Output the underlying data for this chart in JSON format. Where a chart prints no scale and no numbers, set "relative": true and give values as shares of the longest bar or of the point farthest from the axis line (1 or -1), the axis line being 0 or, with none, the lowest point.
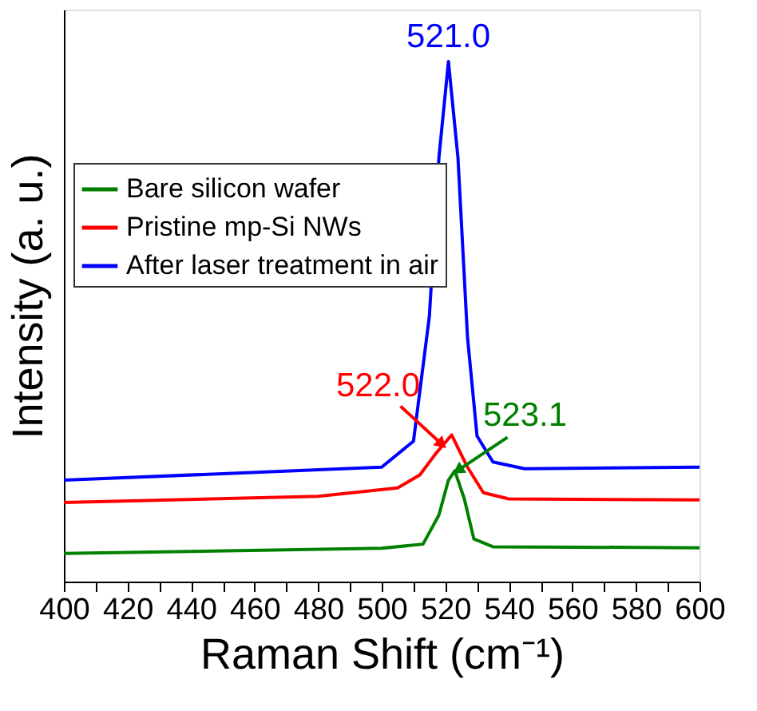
{
  "chart_data": {
    "type": "line",
    "relative": true,
    "xlabel": "Raman Shift (cm⁻¹)",
    "ylabel": "Intensity (a. u.)",
    "xlim": [
      400,
      600
    ],
    "xticks": [
      400,
      {
        "value": 410,
        "label": null
      },
      420,
      {
        "value": 430,
        "label": null
      },
      440,
      {
        "value": 450,
        "label": null
      },
      460,
      {
        "value": 470,
        "label": null
      },
      480,
      {
        "value": 490,
        "label": null
      },
      500,
      {
        "value": 510,
        "label": null
      },
      520,
      {
        "value": 530,
        "label": null
      },
      540,
      {
        "value": 550,
        "label": null
      },
      560,
      {
        "value": 570,
        "label": null
      },
      580,
      {
        "value": 590,
        "label": null
      },
      600
    ],
    "tick_labels": "x",
    "legend": "top left",
    "grid": false,
    "marker": "none",
    "line_style": "solid",
    "series": [
      {
        "name": "Bare silicon wafer",
        "color": "#008000",
        "x": [
          400,
          500,
          513,
          518,
          521,
          523,
          526,
          529,
          535,
          600
        ],
        "values": [
          0.054,
          0.064,
          0.072,
          0.128,
          0.195,
          0.213,
          0.159,
          0.082,
          0.067,
          0.065
        ]
      },
      {
        "name": "Pristine mp-Si NWs",
        "color": "#ff0000",
        "x": [
          400,
          480,
          505,
          512,
          517,
          522,
          527,
          532,
          540,
          600
        ],
        "values": [
          0.152,
          0.164,
          0.18,
          0.205,
          0.246,
          0.282,
          0.22,
          0.171,
          0.159,
          0.157
        ]
      },
      {
        "name": "After laser treatment in air",
        "color": "#0000ff",
        "x": [
          400,
          500,
          510,
          515,
          518,
          521,
          524,
          527,
          530,
          535,
          545,
          600
        ],
        "values": [
          0.195,
          0.22,
          0.27,
          0.51,
          0.815,
          1.0,
          0.815,
          0.47,
          0.28,
          0.23,
          0.217,
          0.22
        ]
      }
    ],
    "annotations": [
      {
        "text": "521.0",
        "x": 521,
        "y": 1.0
      },
      {
        "text": "522.0",
        "x": 522,
        "y": 0.282
      },
      {
        "text": "523.1",
        "x": 523,
        "y": 0.213
      }
    ]
  }
}
